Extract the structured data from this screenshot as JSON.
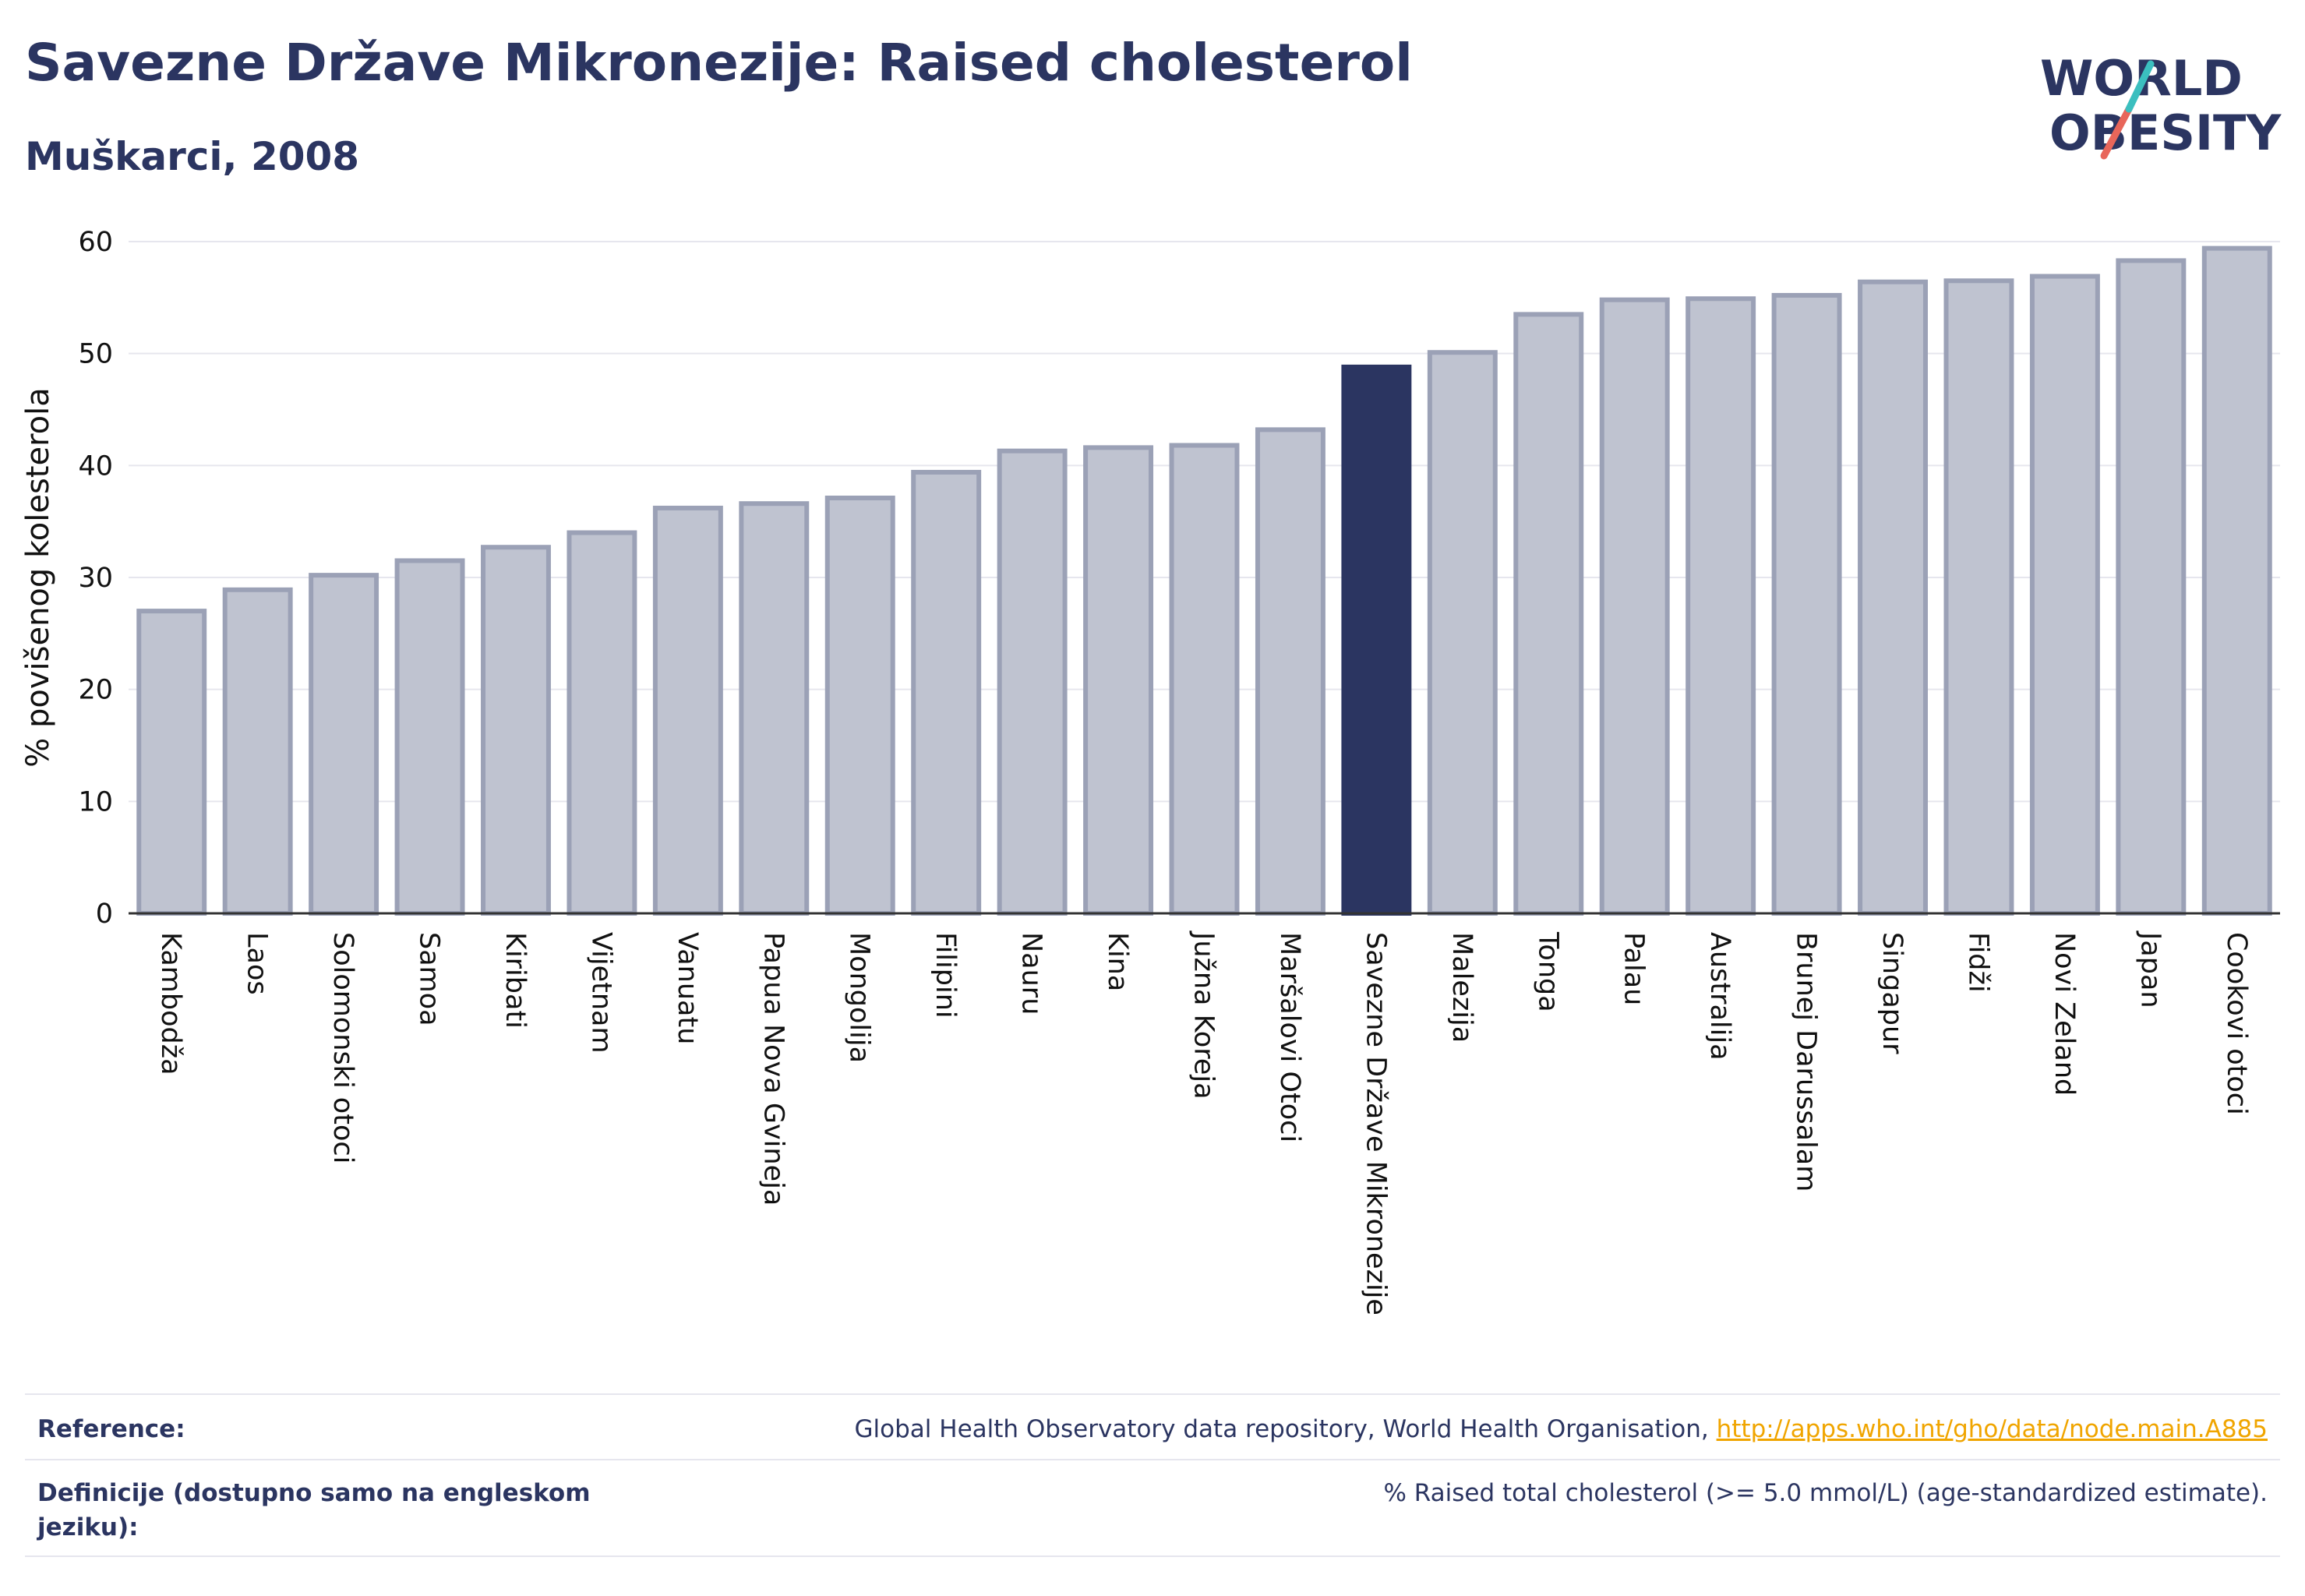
{
  "header": {
    "title": "Savezne Države Mikronezije: Raised cholesterol",
    "subtitle": "Muškarci, 2008"
  },
  "logo": {
    "line1": "WORLD",
    "line2": "OBESITY",
    "accent_teal": "#3bbfbf",
    "accent_red": "#e8665a"
  },
  "colors": {
    "bar": "#bfc3d0",
    "bar_border": "#9ba1b6",
    "highlight": "#2b3561",
    "grid": "#e6e6ee"
  },
  "chart_data": {
    "type": "bar",
    "ylabel": "% povišenog kolesterola",
    "ylim": [
      0,
      60
    ],
    "yticks": [
      0,
      10,
      20,
      30,
      40,
      50,
      60
    ],
    "highlight": "Savezne Države Mikronezije",
    "categories": [
      "Kambodža",
      "Laos",
      "Solomonski otoci",
      "Samoa",
      "Kiribati",
      "Vijetnam",
      "Vanuatu",
      "Papua Nova Gvineja",
      "Mongolija",
      "Filipini",
      "Nauru",
      "Kina",
      "Južna Koreja",
      "Maršalovi Otoci",
      "Savezne Države Mikronezije",
      "Malezija",
      "Tonga",
      "Palau",
      "Australija",
      "Brunej Darussalam",
      "Singapur",
      "Fidži",
      "Novi Zeland",
      "Japan",
      "Cookovi otoci"
    ],
    "values": [
      27.0,
      28.9,
      30.2,
      31.5,
      32.7,
      34.0,
      36.2,
      36.6,
      37.1,
      39.4,
      41.3,
      41.6,
      41.8,
      43.2,
      48.8,
      50.1,
      53.5,
      54.8,
      54.9,
      55.2,
      56.4,
      56.5,
      56.9,
      58.3,
      59.4
    ]
  },
  "footer": {
    "reference_label": "Reference:",
    "reference_text": "Global Health Observatory data repository, World Health Organisation, ",
    "reference_link": "http://apps.who.int/gho/data/node.main.A885",
    "definition_label": "Definicije (dostupno samo na engleskom jeziku):",
    "definition_text": "% Raised total cholesterol (>= 5.0 mmol/L) (age-standardized estimate)."
  }
}
